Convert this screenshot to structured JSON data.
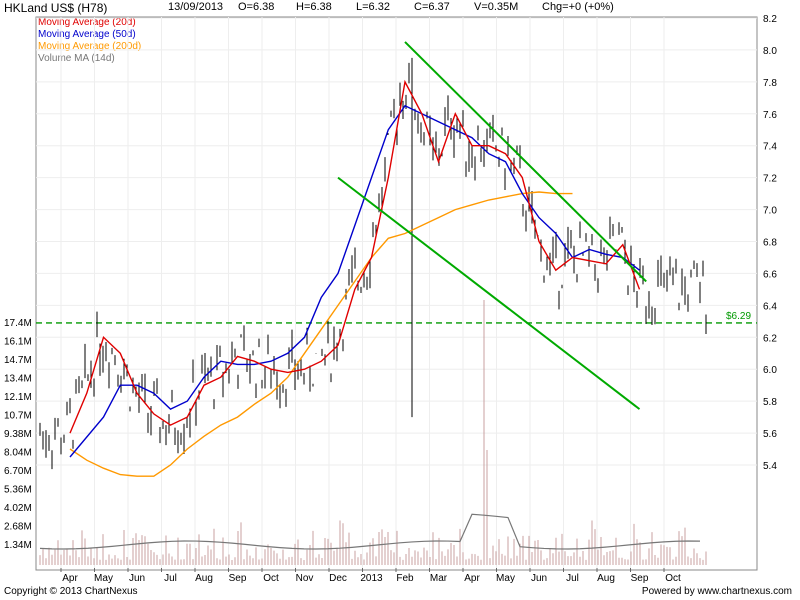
{
  "header": {
    "title": "HKLand US$ (H78)",
    "date": "13/09/2013",
    "open": "O=6.38",
    "high": "H=6.38",
    "low": "L=6.32",
    "close": "C=6.37",
    "volume": "V=0.35M",
    "change": "Chg=+0 (+0%)"
  },
  "legend": [
    {
      "label": "Moving Average (20d)",
      "color": "#e00000"
    },
    {
      "label": "Moving Average (50d)",
      "color": "#0000cc"
    },
    {
      "label": "Moving Average (200d)",
      "color": "#ff9900"
    },
    {
      "label": "Volume MA (14d)",
      "color": "#777777"
    }
  ],
  "footer": {
    "copyright": "Copyright © 2013 ChartNexus",
    "powered": "Powered by www.chartnexus.com"
  },
  "chart_data": {
    "type": "line",
    "price_axis_ticks": [
      "8.2",
      "8.0",
      "7.8",
      "7.6",
      "7.4",
      "7.2",
      "7.0",
      "6.8",
      "6.6",
      "6.4",
      "6.2",
      "6.0",
      "5.8",
      "5.6",
      "5.4"
    ],
    "price_range": [
      5.25,
      8.2
    ],
    "volume_axis_ticks": [
      "17.4M",
      "16.1M",
      "14.7M",
      "13.4M",
      "12.1M",
      "10.7M",
      "9.38M",
      "8.04M",
      "6.70M",
      "5.36M",
      "4.02M",
      "2.68M",
      "1.34M"
    ],
    "month_labels": [
      "Apr",
      "May",
      "Jun",
      "Jul",
      "Aug",
      "Sep",
      "Oct",
      "Nov",
      "Dec",
      "2013",
      "Feb",
      "Mar",
      "Apr",
      "May",
      "Jun",
      "Jul",
      "Aug",
      "Sep",
      "Oct"
    ],
    "support_line": {
      "value": 6.29,
      "label": "$6.29",
      "color": "#009900"
    },
    "colors": {
      "price_bars": "#000000",
      "ma20": "#e00000",
      "ma50": "#0000cc",
      "ma200": "#ff9900",
      "volume_ma": "#777777",
      "trend": "#00aa00",
      "volume_bars": "#c8a0a0"
    },
    "ma20": [
      [
        0,
        5.6
      ],
      [
        0.5,
        5.85
      ],
      [
        1,
        6.2
      ],
      [
        1.5,
        6.1
      ],
      [
        2,
        5.85
      ],
      [
        2.5,
        5.72
      ],
      [
        3,
        5.65
      ],
      [
        3.5,
        5.7
      ],
      [
        4,
        5.9
      ],
      [
        4.5,
        5.95
      ],
      [
        5,
        6.08
      ],
      [
        5.5,
        6.05
      ],
      [
        6,
        6.0
      ],
      [
        6.5,
        5.98
      ],
      [
        7,
        6.0
      ],
      [
        7.5,
        6.05
      ],
      [
        8,
        6.15
      ],
      [
        8.5,
        6.5
      ],
      [
        9,
        6.7
      ],
      [
        9.5,
        7.2
      ],
      [
        10,
        7.8
      ],
      [
        10.5,
        7.6
      ],
      [
        11,
        7.3
      ],
      [
        11.5,
        7.6
      ],
      [
        12,
        7.4
      ],
      [
        12.5,
        7.4
      ],
      [
        13,
        7.35
      ],
      [
        13.5,
        7.2
      ],
      [
        14,
        6.8
      ],
      [
        14.5,
        6.62
      ],
      [
        15,
        6.7
      ],
      [
        15.5,
        6.68
      ],
      [
        16,
        6.66
      ],
      [
        16.5,
        6.78
      ],
      [
        17,
        6.5
      ]
    ],
    "ma50": [
      [
        0,
        5.45
      ],
      [
        1,
        5.7
      ],
      [
        1.5,
        5.9
      ],
      [
        2,
        5.9
      ],
      [
        2.5,
        5.85
      ],
      [
        3,
        5.75
      ],
      [
        3.5,
        5.8
      ],
      [
        4,
        5.95
      ],
      [
        4.5,
        6.05
      ],
      [
        5,
        6.03
      ],
      [
        5.5,
        6.03
      ],
      [
        6,
        6.05
      ],
      [
        6.5,
        6.1
      ],
      [
        7,
        6.2
      ],
      [
        7.5,
        6.45
      ],
      [
        8,
        6.6
      ],
      [
        8.5,
        6.9
      ],
      [
        9,
        7.2
      ],
      [
        9.5,
        7.5
      ],
      [
        10,
        7.65
      ],
      [
        10.5,
        7.6
      ],
      [
        11,
        7.55
      ],
      [
        11.5,
        7.5
      ],
      [
        12,
        7.45
      ],
      [
        12.5,
        7.35
      ],
      [
        13,
        7.3
      ],
      [
        13.5,
        7.1
      ],
      [
        14,
        6.95
      ],
      [
        14.5,
        6.85
      ],
      [
        15,
        6.7
      ],
      [
        15.5,
        6.75
      ],
      [
        16,
        6.72
      ],
      [
        16.5,
        6.7
      ],
      [
        17,
        6.62
      ]
    ],
    "ma200": [
      [
        0,
        5.5
      ],
      [
        0.5,
        5.43
      ],
      [
        1,
        5.38
      ],
      [
        1.5,
        5.34
      ],
      [
        2,
        5.33
      ],
      [
        2.5,
        5.33
      ],
      [
        3,
        5.4
      ],
      [
        3.5,
        5.5
      ],
      [
        4,
        5.58
      ],
      [
        4.5,
        5.65
      ],
      [
        5,
        5.7
      ],
      [
        5.5,
        5.78
      ],
      [
        6,
        5.85
      ],
      [
        6.5,
        5.95
      ],
      [
        7,
        6.1
      ],
      [
        7.5,
        6.25
      ],
      [
        8,
        6.4
      ],
      [
        8.5,
        6.55
      ],
      [
        9,
        6.7
      ],
      [
        9.5,
        6.82
      ],
      [
        10,
        6.85
      ],
      [
        10.5,
        6.9
      ],
      [
        11,
        6.95
      ],
      [
        11.5,
        7.0
      ],
      [
        12,
        7.03
      ],
      [
        12.5,
        7.06
      ],
      [
        13,
        7.08
      ],
      [
        13.5,
        7.1
      ],
      [
        14,
        7.11
      ],
      [
        14.5,
        7.1
      ],
      [
        15,
        7.1
      ]
    ],
    "trend_lines": [
      {
        "from": [
          10.0,
          8.05
        ],
        "to": [
          17.2,
          6.55
        ]
      },
      {
        "from": [
          8.0,
          7.2
        ],
        "to": [
          17.0,
          5.75
        ]
      }
    ]
  }
}
